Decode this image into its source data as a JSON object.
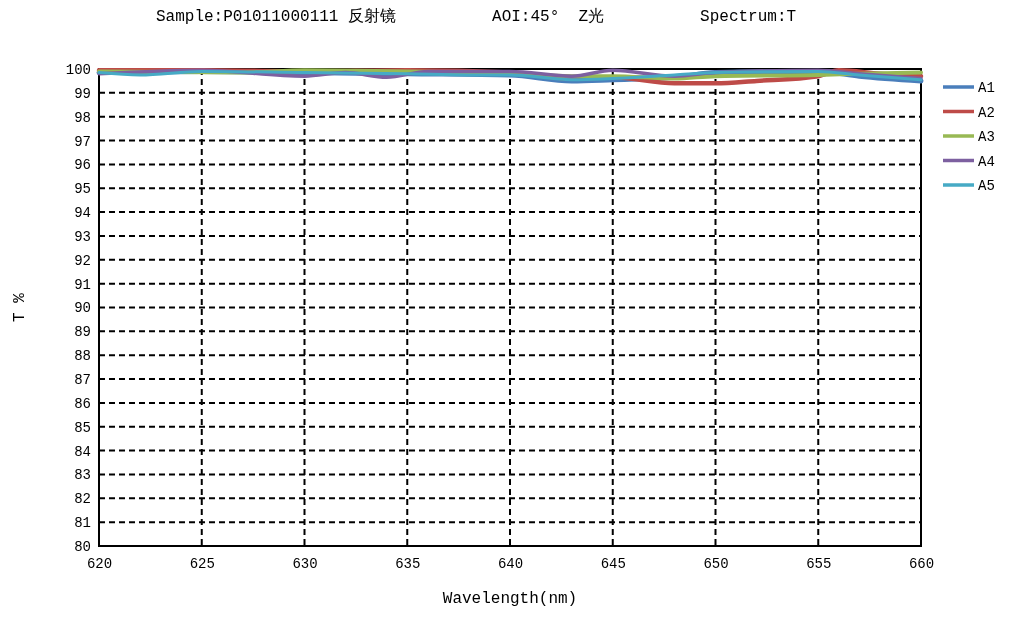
{
  "chart_data": {
    "type": "line",
    "title": "Sample:P01011000111 反射镜          AOI:45°  Z光          Spectrum:T",
    "xlabel": "Wavelength(nm)",
    "ylabel": "T %",
    "xlim": [
      620,
      660
    ],
    "xticks": [
      620,
      625,
      630,
      635,
      640,
      645,
      650,
      655,
      660
    ],
    "ylim": [
      80,
      100
    ],
    "yticks": [
      80,
      81,
      82,
      83,
      84,
      85,
      86,
      87,
      88,
      89,
      90,
      91,
      92,
      93,
      94,
      95,
      96,
      97,
      98,
      99,
      100
    ],
    "grid": true,
    "legend": "right",
    "line_style": "solid",
    "marker": "none",
    "series": [
      {
        "name": "A1",
        "color": "#4a7ebb",
        "x": [
          620,
          625,
          630,
          635,
          640,
          643,
          645,
          648,
          650,
          655,
          657,
          660
        ],
        "values": [
          99.85,
          99.9,
          99.85,
          99.8,
          99.75,
          99.5,
          99.55,
          99.65,
          99.85,
          99.9,
          99.7,
          99.5
        ]
      },
      {
        "name": "A2",
        "color": "#be4b48",
        "x": [
          620,
          625,
          630,
          635,
          640,
          643,
          645,
          648,
          650,
          652,
          655,
          656,
          658,
          660
        ],
        "values": [
          99.95,
          99.95,
          99.9,
          99.95,
          99.85,
          99.6,
          99.65,
          99.4,
          99.4,
          99.5,
          99.7,
          99.95,
          99.8,
          99.7
        ]
      },
      {
        "name": "A3",
        "color": "#98b954",
        "x": [
          620,
          627,
          630,
          635,
          640,
          643,
          645,
          648,
          650,
          655,
          657,
          660
        ],
        "values": [
          99.9,
          99.85,
          99.95,
          99.9,
          99.8,
          99.7,
          99.7,
          99.6,
          99.7,
          99.75,
          99.8,
          99.85
        ]
      },
      {
        "name": "A4",
        "color": "#7d60a0",
        "x": [
          620,
          625,
          630,
          632,
          634,
          636,
          640,
          643,
          645,
          648,
          650,
          655,
          657,
          660
        ],
        "values": [
          99.8,
          99.95,
          99.7,
          99.85,
          99.65,
          99.9,
          99.9,
          99.7,
          99.95,
          99.7,
          99.85,
          99.95,
          99.8,
          99.6
        ]
      },
      {
        "name": "A5",
        "color": "#46aac5",
        "x": [
          620,
          622,
          625,
          630,
          635,
          638,
          640,
          643,
          645,
          648,
          650,
          655,
          657,
          660
        ],
        "values": [
          99.85,
          99.75,
          99.9,
          99.85,
          99.8,
          99.75,
          99.75,
          99.55,
          99.6,
          99.75,
          99.85,
          99.9,
          99.75,
          99.55
        ]
      }
    ]
  }
}
